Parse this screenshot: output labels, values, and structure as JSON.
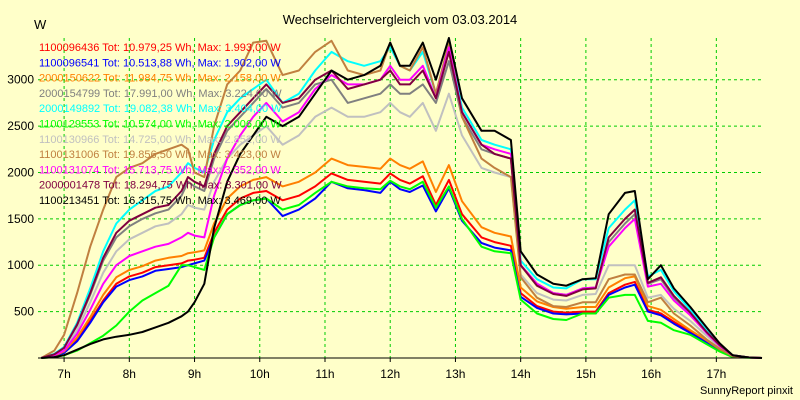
{
  "chart_data": {
    "type": "line",
    "title": "Wechselrichtervergleich vom 03.03.2014",
    "ylabel": "W",
    "xlabel": "",
    "footer": "SunnyReport pinxit",
    "x_ticks": [
      {
        "hour": 7,
        "label": "7h"
      },
      {
        "hour": 8,
        "label": "8h"
      },
      {
        "hour": 9,
        "label": "9h"
      },
      {
        "hour": 10,
        "label": "10h"
      },
      {
        "hour": 11,
        "label": "11h"
      },
      {
        "hour": 12,
        "label": "12h"
      },
      {
        "hour": 13,
        "label": "13h"
      },
      {
        "hour": 14,
        "label": "14h"
      },
      {
        "hour": 15,
        "label": "15h"
      },
      {
        "hour": 16,
        "label": "16h"
      },
      {
        "hour": 17,
        "label": "17h"
      }
    ],
    "y_ticks": [
      500,
      1000,
      1500,
      2000,
      2500,
      3000
    ],
    "xlim": [
      6.6,
      17.7
    ],
    "ylim": [
      0,
      3450
    ],
    "grid": true,
    "legend_position": "top-left",
    "x": [
      6.65,
      6.85,
      7.0,
      7.2,
      7.4,
      7.6,
      7.8,
      8.0,
      8.2,
      8.4,
      8.6,
      8.8,
      8.9,
      9.0,
      9.15,
      9.3,
      9.5,
      9.7,
      9.9,
      10.1,
      10.35,
      10.6,
      10.85,
      11.1,
      11.35,
      11.6,
      11.85,
      12.0,
      12.15,
      12.3,
      12.5,
      12.7,
      12.9,
      13.1,
      13.4,
      13.6,
      13.85,
      14.0,
      14.25,
      14.5,
      14.7,
      14.95,
      15.15,
      15.35,
      15.6,
      15.75,
      15.95,
      16.15,
      16.35,
      16.6,
      16.85,
      17.05,
      17.25,
      17.5,
      17.7
    ],
    "series": [
      {
        "name": "1100096436 Tot: 10.979,25 Wh, Max: 1.993,00 W",
        "color": "#ff0000",
        "values": [
          0,
          20,
          60,
          200,
          400,
          620,
          800,
          880,
          920,
          980,
          1000,
          1020,
          1050,
          1060,
          1080,
          1350,
          1600,
          1720,
          1780,
          1800,
          1700,
          1750,
          1850,
          1990,
          1920,
          1900,
          1880,
          1990,
          1920,
          1880,
          1960,
          1650,
          1920,
          1550,
          1300,
          1250,
          1210,
          700,
          560,
          500,
          490,
          500,
          500,
          700,
          790,
          820,
          520,
          480,
          390,
          280,
          180,
          90,
          20,
          5,
          0
        ]
      },
      {
        "name": "1100096541 Tot: 10.513,88 Wh, Max: 1.902,00 W",
        "color": "#0000ff",
        "values": [
          0,
          20,
          55,
          180,
          380,
          600,
          770,
          840,
          880,
          940,
          960,
          980,
          1000,
          1020,
          1050,
          1300,
          1550,
          1650,
          1700,
          1720,
          1530,
          1600,
          1720,
          1900,
          1830,
          1810,
          1780,
          1900,
          1820,
          1790,
          1860,
          1580,
          1830,
          1480,
          1240,
          1190,
          1160,
          660,
          540,
          480,
          470,
          480,
          480,
          680,
          760,
          790,
          500,
          460,
          370,
          270,
          170,
          85,
          20,
          5,
          0
        ]
      },
      {
        "name": "2000150622 Tot: 11.984,75 Wh, Max: 2.158,00 W",
        "color": "#ff8000",
        "values": [
          0,
          25,
          70,
          220,
          440,
          680,
          870,
          950,
          990,
          1050,
          1080,
          1100,
          1130,
          1140,
          1160,
          1450,
          1720,
          1850,
          1920,
          1950,
          1850,
          1900,
          2000,
          2150,
          2080,
          2060,
          2040,
          2150,
          2080,
          2040,
          2120,
          1790,
          2080,
          1690,
          1410,
          1350,
          1310,
          760,
          610,
          550,
          530,
          550,
          550,
          760,
          860,
          880,
          560,
          520,
          420,
          300,
          190,
          95,
          20,
          5,
          0
        ]
      },
      {
        "name": "2000154799 Tot: 17.991,00 Wh, Max: 3.224,00 W",
        "color": "#808080",
        "values": [
          0,
          40,
          110,
          350,
          680,
          1050,
          1300,
          1420,
          1500,
          1560,
          1600,
          1750,
          1900,
          1850,
          1800,
          2150,
          2450,
          2600,
          2750,
          2900,
          2700,
          2750,
          2950,
          3000,
          2750,
          2800,
          2850,
          2950,
          2850,
          2850,
          2950,
          2750,
          3200,
          2600,
          2250,
          2200,
          2150,
          1000,
          800,
          700,
          680,
          750,
          760,
          1250,
          1450,
          1550,
          800,
          850,
          650,
          480,
          280,
          140,
          30,
          5,
          0
        ]
      },
      {
        "name": "2000149892 Tot: 19.082,38 Wh, Max: 3.404,00 W",
        "color": "#00ffff",
        "values": [
          0,
          45,
          120,
          380,
          750,
          1150,
          1450,
          1600,
          1700,
          1800,
          1850,
          2000,
          2100,
          2050,
          2000,
          2350,
          2650,
          2800,
          2900,
          3000,
          2750,
          2850,
          3100,
          3300,
          3200,
          3150,
          3200,
          3350,
          3150,
          3100,
          3300,
          2850,
          3350,
          2700,
          2350,
          2300,
          2250,
          1050,
          850,
          760,
          750,
          850,
          850,
          1400,
          1600,
          1700,
          880,
          950,
          720,
          520,
          300,
          150,
          30,
          5,
          0
        ]
      },
      {
        "name": "1100129553 Tot: 10.574,00 Wh, Max: 2.006,00 W",
        "color": "#00ff00",
        "values": [
          0,
          10,
          30,
          80,
          160,
          240,
          350,
          500,
          620,
          700,
          780,
          1000,
          1000,
          980,
          950,
          1300,
          1550,
          1650,
          1700,
          1720,
          1600,
          1650,
          1780,
          1900,
          1850,
          1830,
          1820,
          1910,
          1850,
          1820,
          1900,
          1620,
          1850,
          1500,
          1200,
          1150,
          1130,
          630,
          480,
          420,
          410,
          480,
          480,
          650,
          680,
          680,
          400,
          380,
          300,
          250,
          150,
          70,
          10,
          2,
          0
        ]
      },
      {
        "name": "1100130966 Tot: 14.725,00 Wh, Max: 2.852,00 W",
        "color": "#c0c0c0",
        "values": [
          0,
          35,
          95,
          300,
          600,
          920,
          1150,
          1280,
          1350,
          1420,
          1450,
          1550,
          1650,
          1620,
          1600,
          1900,
          2150,
          2300,
          2400,
          2500,
          2300,
          2400,
          2600,
          2700,
          2600,
          2600,
          2650,
          2750,
          2650,
          2600,
          2750,
          2450,
          2850,
          2400,
          2050,
          2000,
          1950,
          900,
          700,
          630,
          620,
          680,
          690,
          1000,
          1000,
          1000,
          650,
          680,
          530,
          400,
          240,
          120,
          25,
          5,
          0
        ]
      },
      {
        "name": "1100131006 Tot: 19.856,50 Wh, Max: 3.423,00 W",
        "color": "#c08040",
        "values": [
          0,
          80,
          250,
          700,
          1200,
          1600,
          1950,
          2050,
          2100,
          2200,
          2250,
          2300,
          2250,
          2000,
          1950,
          2500,
          2950,
          3100,
          3400,
          3420,
          3050,
          3100,
          3300,
          3420,
          3100,
          3050,
          3100,
          3400,
          3150,
          3100,
          3350,
          2850,
          3400,
          2600,
          2150,
          2050,
          1950,
          870,
          650,
          560,
          550,
          600,
          600,
          850,
          900,
          900,
          600,
          650,
          480,
          350,
          200,
          100,
          20,
          5,
          0
        ]
      },
      {
        "name": "1100131074 Tot: 15.713,75 Wh, Max: 3.352,00 W",
        "color": "#ff00ff",
        "values": [
          0,
          30,
          80,
          260,
          520,
          800,
          1000,
          1100,
          1150,
          1200,
          1230,
          1300,
          1350,
          1320,
          1300,
          1750,
          2150,
          2400,
          2600,
          2750,
          2550,
          2650,
          2900,
          3050,
          2950,
          2950,
          3000,
          3150,
          3000,
          3000,
          3150,
          2800,
          3350,
          2650,
          2300,
          2250,
          2200,
          1000,
          800,
          700,
          680,
          750,
          760,
          1200,
          1400,
          1500,
          770,
          800,
          620,
          460,
          270,
          130,
          30,
          5,
          0
        ]
      },
      {
        "name": "2000001478 Tot: 18.294,75 Wh, Max: 3.301,00 W",
        "color": "#800040",
        "values": [
          0,
          40,
          110,
          360,
          700,
          1080,
          1350,
          1480,
          1550,
          1620,
          1650,
          1800,
          1950,
          1900,
          1850,
          2200,
          2500,
          2650,
          2800,
          2950,
          2750,
          2800,
          3000,
          3100,
          2900,
          2950,
          3000,
          3100,
          2950,
          2950,
          3100,
          2800,
          3300,
          2650,
          2300,
          2200,
          2150,
          1000,
          780,
          690,
          670,
          740,
          750,
          1300,
          1500,
          1600,
          810,
          870,
          670,
          490,
          280,
          140,
          30,
          5,
          0
        ]
      },
      {
        "name": "1100213451 Tot: 16.315,75 Wh, Max: 3.469,00 W",
        "color": "#000000",
        "values": [
          0,
          10,
          30,
          90,
          150,
          200,
          230,
          250,
          280,
          330,
          380,
          450,
          500,
          600,
          800,
          1400,
          1900,
          2200,
          2400,
          2600,
          2500,
          2600,
          2850,
          3100,
          3000,
          3050,
          3150,
          3400,
          3150,
          3150,
          3400,
          3000,
          3450,
          2800,
          2450,
          2450,
          2350,
          1150,
          900,
          800,
          780,
          850,
          860,
          1550,
          1780,
          1800,
          850,
          1000,
          750,
          550,
          330,
          160,
          30,
          5,
          0
        ]
      }
    ]
  }
}
